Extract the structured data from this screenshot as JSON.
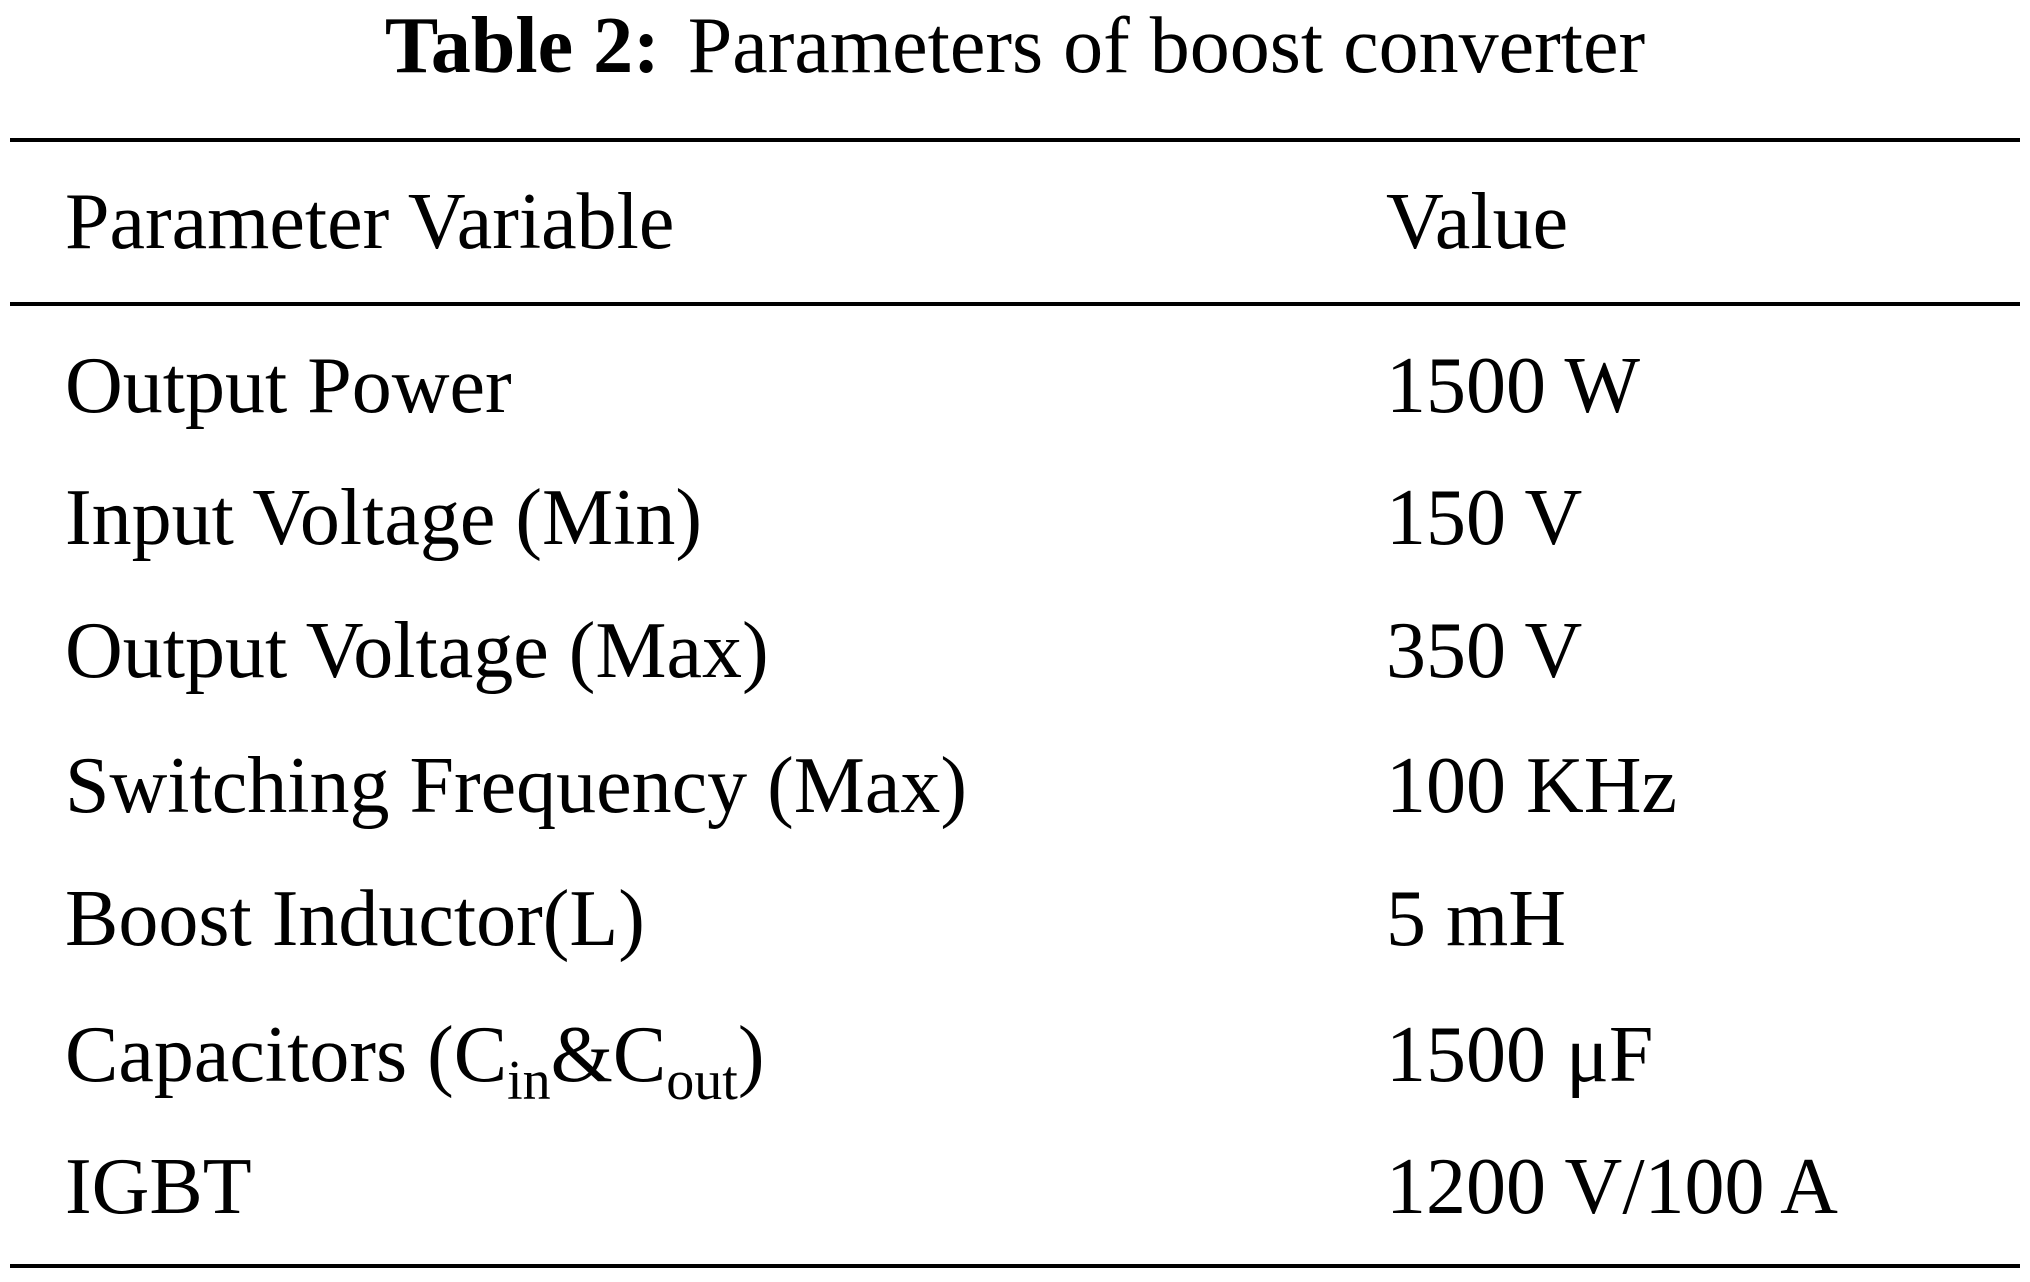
{
  "caption": {
    "label": "Table 2:",
    "title": "Parameters of boost converter"
  },
  "table": {
    "header": [
      "Parameter Variable",
      "Value"
    ],
    "rows": [
      [
        "Output Power",
        "1500 W"
      ],
      [
        "Input Voltage (Min)",
        "150 V"
      ],
      [
        "Output Voltage (Max)",
        "350 V"
      ],
      [
        "Switching Frequency (Max)",
        "100 KHz"
      ],
      [
        "Boost Inductor(L)",
        "5 mH"
      ],
      [
        [
          {
            "text": "Capacitors (C"
          },
          {
            "sub": "in"
          },
          {
            "text": "&C"
          },
          {
            "sub": "out"
          },
          {
            "text": ")"
          }
        ],
        "1500 μF"
      ],
      [
        "IGBT",
        "1200 V/100 A"
      ]
    ]
  }
}
